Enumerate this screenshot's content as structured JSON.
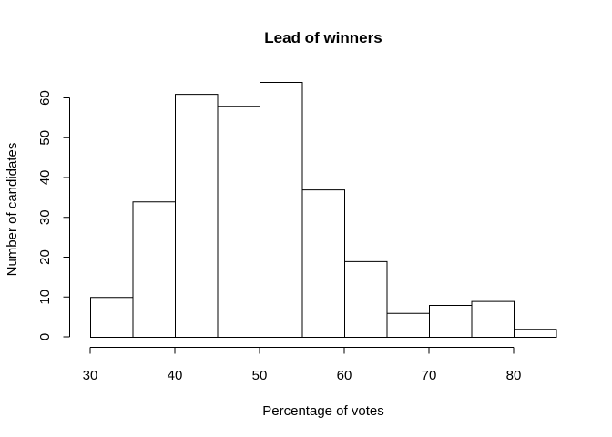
{
  "chart_data": {
    "type": "bar",
    "title": "Lead of winners",
    "xlabel": "Percentage of votes",
    "ylabel": "Number of candidates",
    "bins": [
      {
        "from": 30,
        "to": 35,
        "count": 10
      },
      {
        "from": 35,
        "to": 40,
        "count": 34
      },
      {
        "from": 40,
        "to": 45,
        "count": 61
      },
      {
        "from": 45,
        "to": 50,
        "count": 58
      },
      {
        "from": 50,
        "to": 55,
        "count": 64
      },
      {
        "from": 55,
        "to": 60,
        "count": 37
      },
      {
        "from": 60,
        "to": 65,
        "count": 19
      },
      {
        "from": 65,
        "to": 70,
        "count": 6
      },
      {
        "from": 70,
        "to": 75,
        "count": 8
      },
      {
        "from": 75,
        "to": 80,
        "count": 9
      },
      {
        "from": 80,
        "to": 85,
        "count": 2
      }
    ],
    "xticks": [
      30,
      40,
      50,
      60,
      70,
      80
    ],
    "yticks": [
      0,
      10,
      20,
      30,
      40,
      50,
      60
    ],
    "xlim": [
      30,
      85
    ],
    "ylim": [
      0,
      64
    ],
    "grid": false,
    "colors": {
      "bar_fill": "#ffffff",
      "bar_stroke": "#000000"
    }
  }
}
